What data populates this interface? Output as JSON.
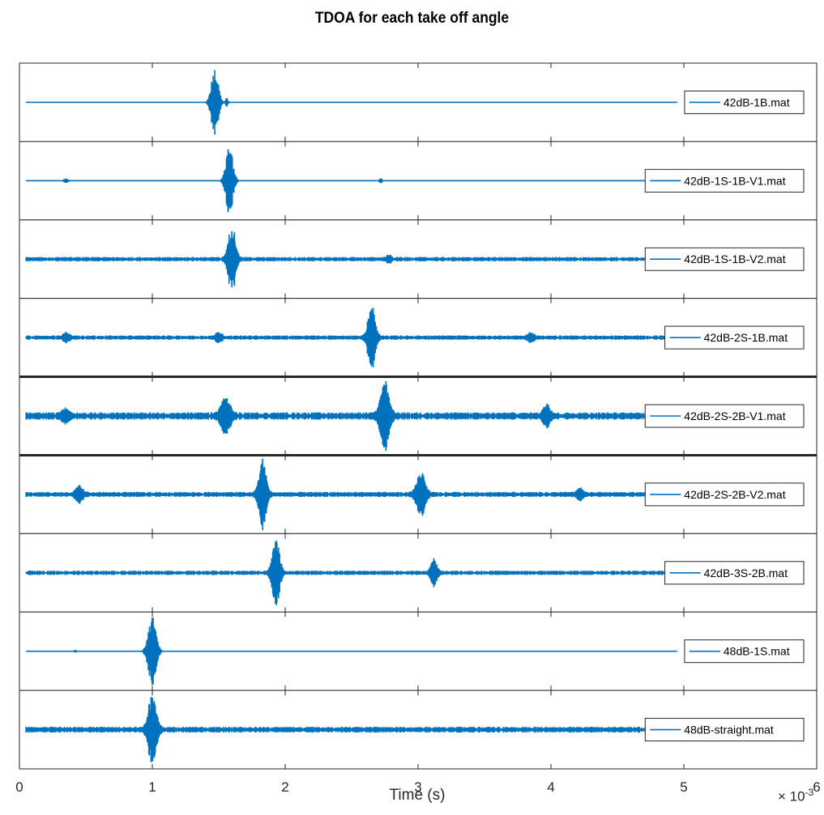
{
  "chart_data": {
    "type": "line",
    "title": "TDOA for each take off angle",
    "xlabel": "Time (s)",
    "x_exponent_prefix": "× 10",
    "x_exponent_power": "-3",
    "xlim": [
      0,
      6
    ],
    "x_tick_labels": [
      "0",
      "1",
      "2",
      "3",
      "4",
      "5",
      "6"
    ],
    "grid": false,
    "legend_position": "right",
    "line_color": "#0072bd",
    "series": [
      {
        "name": "42dB-1B.mat",
        "noise": 0.004,
        "bursts": [
          {
            "t": 1.47,
            "amp": 0.95,
            "w": 0.035
          },
          {
            "t": 1.56,
            "amp": 0.12,
            "w": 0.012
          }
        ]
      },
      {
        "name": "42dB-1S-1B-V1.mat",
        "noise": 0.008,
        "bursts": [
          {
            "t": 1.58,
            "amp": 0.95,
            "w": 0.035
          },
          {
            "t": 0.35,
            "amp": 0.06,
            "w": 0.02
          },
          {
            "t": 2.72,
            "amp": 0.06,
            "w": 0.015
          }
        ]
      },
      {
        "name": "42dB-1S-1B-V2.mat",
        "noise": 0.06,
        "bursts": [
          {
            "t": 1.6,
            "amp": 0.95,
            "w": 0.035
          },
          {
            "t": 2.78,
            "amp": 0.1,
            "w": 0.02
          }
        ]
      },
      {
        "name": "42dB-2S-1B.mat",
        "noise": 0.06,
        "bursts": [
          {
            "t": 2.65,
            "amp": 0.9,
            "w": 0.035
          },
          {
            "t": 0.35,
            "amp": 0.12,
            "w": 0.03
          },
          {
            "t": 1.5,
            "amp": 0.12,
            "w": 0.03
          },
          {
            "t": 3.85,
            "amp": 0.12,
            "w": 0.03
          }
        ]
      },
      {
        "name": "42dB-2S-2B-V1.mat",
        "noise": 0.1,
        "bursts": [
          {
            "t": 2.75,
            "amp": 0.95,
            "w": 0.04
          },
          {
            "t": 1.55,
            "amp": 0.45,
            "w": 0.045
          },
          {
            "t": 3.97,
            "amp": 0.3,
            "w": 0.035
          },
          {
            "t": 0.35,
            "amp": 0.15,
            "w": 0.04
          }
        ]
      },
      {
        "name": "42dB-2S-2B-V2.mat",
        "noise": 0.07,
        "bursts": [
          {
            "t": 1.83,
            "amp": 0.95,
            "w": 0.035
          },
          {
            "t": 3.02,
            "amp": 0.6,
            "w": 0.04
          },
          {
            "t": 0.45,
            "amp": 0.2,
            "w": 0.035
          },
          {
            "t": 4.22,
            "amp": 0.15,
            "w": 0.03
          }
        ]
      },
      {
        "name": "42dB-3S-2B.mat",
        "noise": 0.06,
        "bursts": [
          {
            "t": 1.93,
            "amp": 0.9,
            "w": 0.035
          },
          {
            "t": 3.12,
            "amp": 0.35,
            "w": 0.03
          }
        ]
      },
      {
        "name": "48dB-1S.mat",
        "noise": 0.004,
        "bursts": [
          {
            "t": 1.0,
            "amp": 0.95,
            "w": 0.04
          },
          {
            "t": 0.42,
            "amp": 0.05,
            "w": 0.01
          }
        ]
      },
      {
        "name": "48dB-straight.mat",
        "noise": 0.08,
        "bursts": [
          {
            "t": 1.0,
            "amp": 0.95,
            "w": 0.04
          }
        ]
      }
    ]
  }
}
